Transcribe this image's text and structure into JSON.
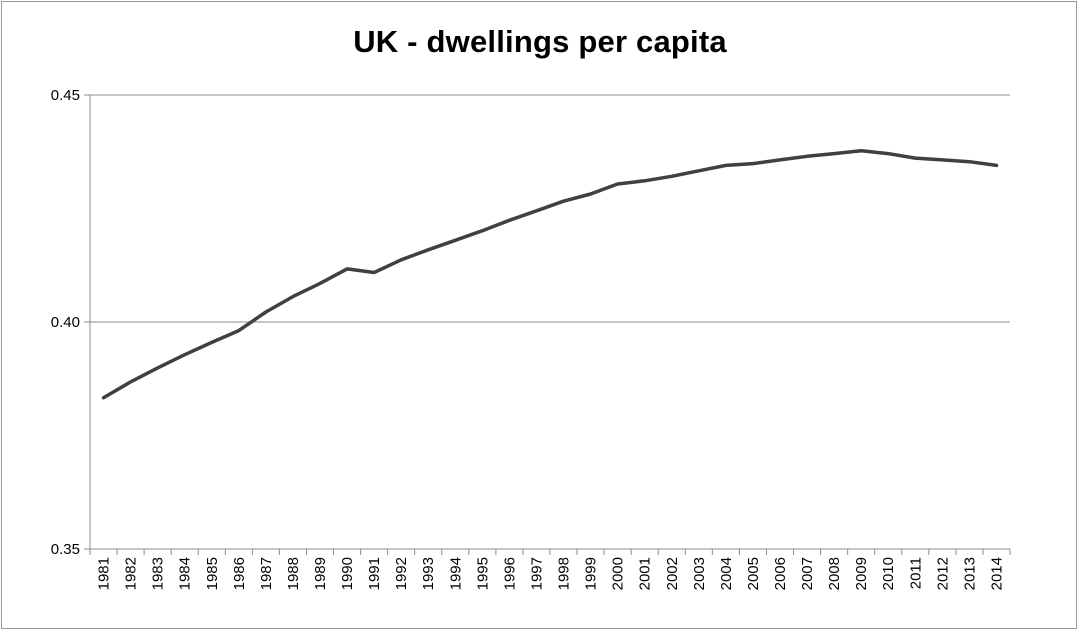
{
  "chart_data": {
    "type": "line",
    "title": "UK - dwellings per capita",
    "xlabel": "",
    "ylabel": "",
    "ylim": [
      0.35,
      0.45
    ],
    "y_ticks": [
      "0.35",
      "0.40",
      "0.45"
    ],
    "y_tick_values": [
      0.35,
      0.4,
      0.45
    ],
    "grid": "horizontal",
    "legend": "none",
    "line_color": "#404040",
    "categories": [
      "1981",
      "1982",
      "1983",
      "1984",
      "1985",
      "1986",
      "1987",
      "1988",
      "1989",
      "1990",
      "1991",
      "1992",
      "1993",
      "1994",
      "1995",
      "1996",
      "1997",
      "1998",
      "1999",
      "2000",
      "2001",
      "2002",
      "2003",
      "2004",
      "2005",
      "2006",
      "2007",
      "2008",
      "2009",
      "2010",
      "2011",
      "2012",
      "2013",
      "2014"
    ],
    "series": [
      {
        "values": [
          0.3833,
          0.3868,
          0.3899,
          0.3928,
          0.3955,
          0.3981,
          0.4022,
          0.4056,
          0.4085,
          0.4117,
          0.4109,
          0.4137,
          0.4159,
          0.418,
          0.4201,
          0.4224,
          0.4245,
          0.4266,
          0.4282,
          0.4304,
          0.4311,
          0.4321,
          0.4333,
          0.4345,
          0.4349,
          0.4357,
          0.4365,
          0.4371,
          0.4377,
          0.4371,
          0.4361,
          0.4357,
          0.4353,
          0.4345
        ]
      }
    ]
  }
}
